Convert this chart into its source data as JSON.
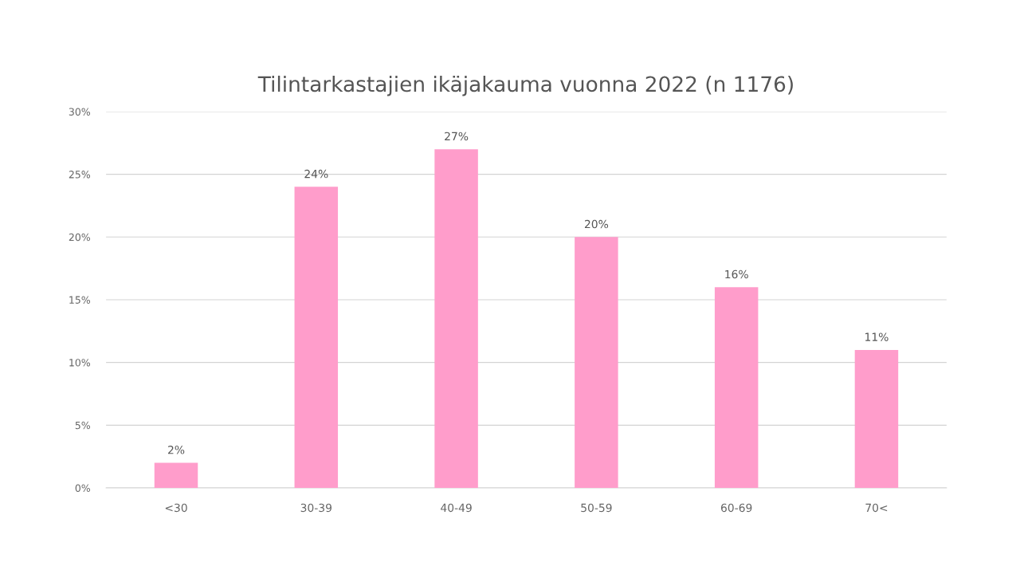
{
  "chart_data": {
    "type": "bar",
    "title": "Tilintarkastajien ikäjakauma vuonna 2022 (n 1176)",
    "categories": [
      "<30",
      "30-39",
      "40-49",
      "50-59",
      "60-69",
      "70<"
    ],
    "values": [
      2,
      24,
      27,
      20,
      16,
      11
    ],
    "color": "#ff9dcb",
    "value_labels": [
      "2%",
      "24%",
      "27%",
      "20%",
      "16%",
      "11%"
    ],
    "ylim": [
      0,
      30
    ],
    "yticks": [
      {
        "value": 0,
        "label": "0%"
      },
      {
        "value": 5,
        "label": "5%"
      },
      {
        "value": 10,
        "label": "10%"
      },
      {
        "value": 15,
        "label": "15%"
      },
      {
        "value": 20,
        "label": "20%"
      },
      {
        "value": 25,
        "label": "25%"
      },
      {
        "value": 30,
        "label": "30%"
      }
    ],
    "grid": "y"
  }
}
